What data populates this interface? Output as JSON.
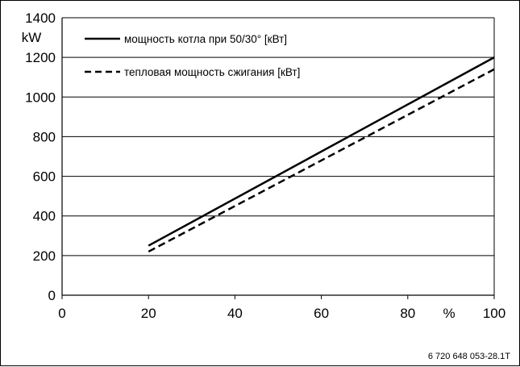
{
  "chart_data": {
    "type": "line",
    "title": "",
    "xlabel": "%",
    "ylabel": "kW",
    "xlim": [
      0,
      100
    ],
    "ylim": [
      0,
      1400
    ],
    "xticks": [
      "0",
      "20",
      "40",
      "60",
      "80",
      "100"
    ],
    "yticks": [
      "0",
      "200",
      "400",
      "600",
      "800",
      "1000",
      "1200",
      "1400"
    ],
    "grid": "horizontal",
    "legend_position": "top-left",
    "series": [
      {
        "name": "мощность котла при 50/30° [кВт]",
        "style": "solid",
        "x": [
          20,
          100
        ],
        "y": [
          250,
          1200
        ]
      },
      {
        "name": "тепловая мощность сжигания  [кВт]",
        "style": "dashed",
        "x": [
          20,
          100
        ],
        "y": [
          220,
          1140
        ]
      }
    ]
  },
  "figure_id": "6 720 648 053-28.1T"
}
